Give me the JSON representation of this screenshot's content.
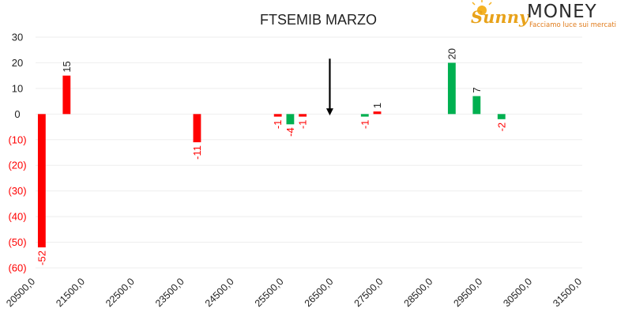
{
  "logo": {
    "brand_part1": "Sunny",
    "brand_part2": "MONEY",
    "tagline": "Facciamo luce sui mercati",
    "colors": {
      "sunny": "#e8a21a",
      "money": "#2b2b2b",
      "tagline": "#e07b1a"
    }
  },
  "chart_data": {
    "type": "bar",
    "title": "FTSEMIB MARZO",
    "xlabel": "",
    "ylabel": "",
    "ylim": [
      -60,
      30
    ],
    "yticks": [
      30,
      20,
      10,
      0,
      -10,
      -20,
      -30,
      -40,
      -50,
      -60
    ],
    "ytick_labels": [
      "30",
      "20",
      "10",
      "0",
      "(10)",
      "(20)",
      "(30)",
      "(40)",
      "(50)",
      "(60)"
    ],
    "xlim": [
      20500,
      31500
    ],
    "xticks": [
      20500,
      21500,
      22500,
      23500,
      24500,
      25500,
      26500,
      27500,
      28500,
      29500,
      30500,
      31500
    ],
    "xtick_labels": [
      "20500,0",
      "21500,0",
      "22500,0",
      "23500,0",
      "24500,0",
      "25500,0",
      "26500,0",
      "27500,0",
      "28500,0",
      "29500,0",
      "30500,0",
      "31500,0"
    ],
    "grid": true,
    "legend": "none",
    "colors": {
      "negative": "#ff0000",
      "positive": "#00b050",
      "text": "#222222"
    },
    "bars": [
      {
        "x": 20625,
        "value": -52,
        "label": "-52",
        "color": "#ff0000"
      },
      {
        "x": 21125,
        "value": 15,
        "label": "15",
        "color": "#ff0000"
      },
      {
        "x": 23750,
        "value": -11,
        "label": "-11",
        "color": "#ff0000"
      },
      {
        "x": 25375,
        "value": -1,
        "label": "-1",
        "color": "#ff0000"
      },
      {
        "x": 25625,
        "value": -4,
        "label": "-4",
        "color": "#00b050"
      },
      {
        "x": 25875,
        "value": -1,
        "label": "-1",
        "color": "#ff0000"
      },
      {
        "x": 27125,
        "value": -1,
        "label": "-1",
        "color": "#00b050"
      },
      {
        "x": 27375,
        "value": 1,
        "label": "1",
        "color": "#ff0000"
      },
      {
        "x": 28875,
        "value": 20,
        "label": "20",
        "color": "#00b050"
      },
      {
        "x": 29375,
        "value": 7,
        "label": "7",
        "color": "#00b050"
      },
      {
        "x": 29875,
        "value": -2,
        "label": "-2",
        "color": "#00b050"
      }
    ],
    "annotations": [
      {
        "type": "arrow-down",
        "x": 26500,
        "y_from": 21,
        "y_to": 5,
        "color": "#000000"
      }
    ]
  }
}
